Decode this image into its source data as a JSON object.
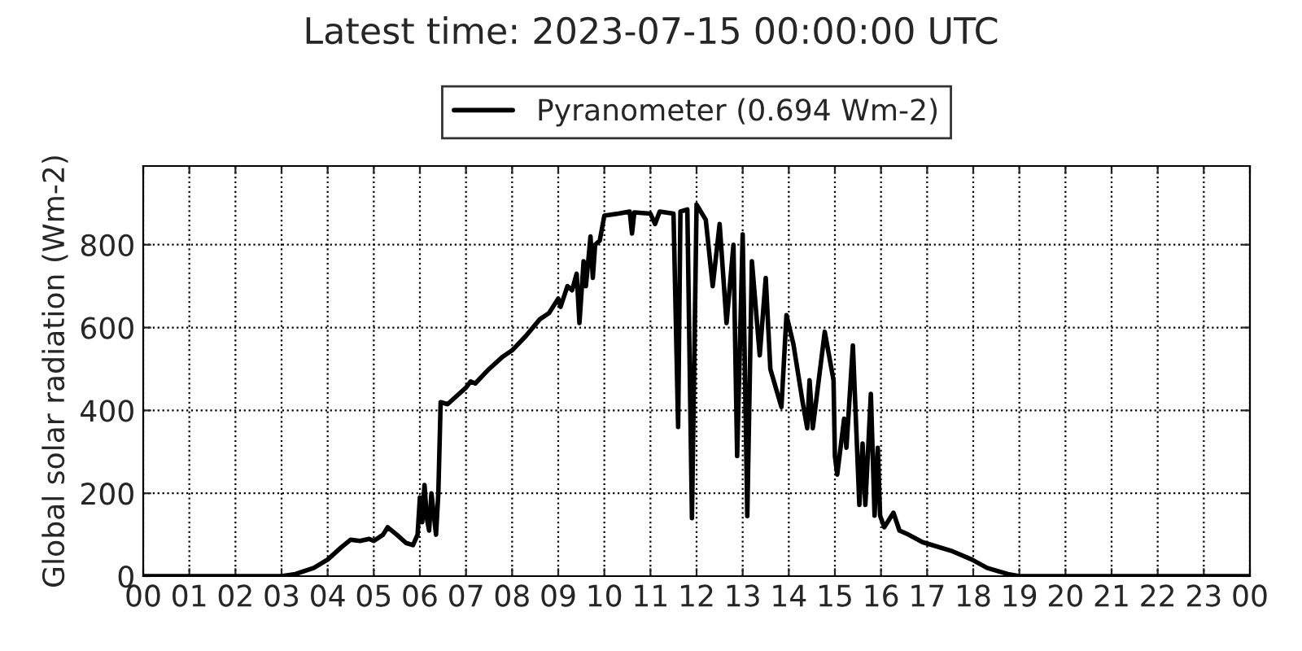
{
  "chart_data": {
    "type": "line",
    "title": "Latest time: 2023-07-15 00:00:00 UTC",
    "ylabel": "Global solar radiation (Wm-2)",
    "x": [
      0,
      3.0,
      3.3,
      3.7,
      4.0,
      4.3,
      4.5,
      4.7,
      4.9,
      5.0,
      5.2,
      5.3,
      5.5,
      5.7,
      5.85,
      5.95,
      6.0,
      6.05,
      6.1,
      6.15,
      6.2,
      6.25,
      6.3,
      6.35,
      6.4,
      6.45,
      6.6,
      6.8,
      7.0,
      7.1,
      7.2,
      7.5,
      7.8,
      8.0,
      8.3,
      8.6,
      8.8,
      9.0,
      9.05,
      9.2,
      9.3,
      9.4,
      9.46,
      9.55,
      9.6,
      9.7,
      9.75,
      9.8,
      9.9,
      10.0,
      10.3,
      10.55,
      10.6,
      10.65,
      11.0,
      11.1,
      11.2,
      11.5,
      11.6,
      11.65,
      11.8,
      11.9,
      12.0,
      12.2,
      12.35,
      12.5,
      12.65,
      12.8,
      12.88,
      13.0,
      13.1,
      13.2,
      13.37,
      13.5,
      13.6,
      13.84,
      13.95,
      14.1,
      14.3,
      14.4,
      14.45,
      14.52,
      14.78,
      14.97,
      15.0,
      15.05,
      15.2,
      15.25,
      15.39,
      15.53,
      15.6,
      15.66,
      15.78,
      15.86,
      15.93,
      15.98,
      16.07,
      16.27,
      16.4,
      16.6,
      16.9,
      17.55,
      17.97,
      18.3,
      18.75,
      19.0,
      24
    ],
    "series": [
      {
        "name": "Pyranometer (0.694 Wm-2)",
        "color": "#000000",
        "values": [
          0,
          0,
          5,
          20,
          40,
          70,
          88,
          85,
          90,
          85,
          100,
          118,
          100,
          80,
          75,
          100,
          190,
          130,
          220,
          140,
          110,
          200,
          150,
          100,
          200,
          420,
          415,
          435,
          455,
          470,
          465,
          500,
          530,
          545,
          580,
          620,
          635,
          670,
          650,
          700,
          690,
          730,
          611,
          760,
          700,
          820,
          720,
          800,
          810,
          870,
          875,
          880,
          827,
          878,
          875,
          850,
          880,
          875,
          360,
          880,
          885,
          140,
          897,
          860,
          700,
          850,
          611,
          800,
          290,
          825,
          145,
          760,
          533,
          720,
          500,
          408,
          630,
          560,
          420,
          357,
          473,
          357,
          590,
          473,
          290,
          245,
          380,
          310,
          557,
          172,
          320,
          172,
          440,
          146,
          310,
          146,
          118,
          153,
          110,
          100,
          82,
          60,
          40,
          20,
          5,
          0,
          0
        ]
      }
    ],
    "xlim": [
      0,
      24
    ],
    "xticks": [
      {
        "value": 0,
        "label": "00"
      },
      {
        "value": 1,
        "label": "01"
      },
      {
        "value": 2,
        "label": "02"
      },
      {
        "value": 3,
        "label": "03"
      },
      {
        "value": 4,
        "label": "04"
      },
      {
        "value": 5,
        "label": "05"
      },
      {
        "value": 6,
        "label": "06"
      },
      {
        "value": 7,
        "label": "07"
      },
      {
        "value": 8,
        "label": "08"
      },
      {
        "value": 9,
        "label": "09"
      },
      {
        "value": 10,
        "label": "10"
      },
      {
        "value": 11,
        "label": "11"
      },
      {
        "value": 12,
        "label": "12"
      },
      {
        "value": 13,
        "label": "13"
      },
      {
        "value": 14,
        "label": "14"
      },
      {
        "value": 15,
        "label": "15"
      },
      {
        "value": 16,
        "label": "16"
      },
      {
        "value": 17,
        "label": "17"
      },
      {
        "value": 18,
        "label": "18"
      },
      {
        "value": 19,
        "label": "19"
      },
      {
        "value": 20,
        "label": "20"
      },
      {
        "value": 21,
        "label": "21"
      },
      {
        "value": 22,
        "label": "22"
      },
      {
        "value": 23,
        "label": "23"
      },
      {
        "value": 24,
        "label": "00"
      }
    ],
    "ylim": [
      0,
      990
    ],
    "yticks": [
      0,
      200,
      400,
      600,
      800
    ],
    "grid": true,
    "legend": "top",
    "line_style": "solid",
    "marker": "none"
  }
}
